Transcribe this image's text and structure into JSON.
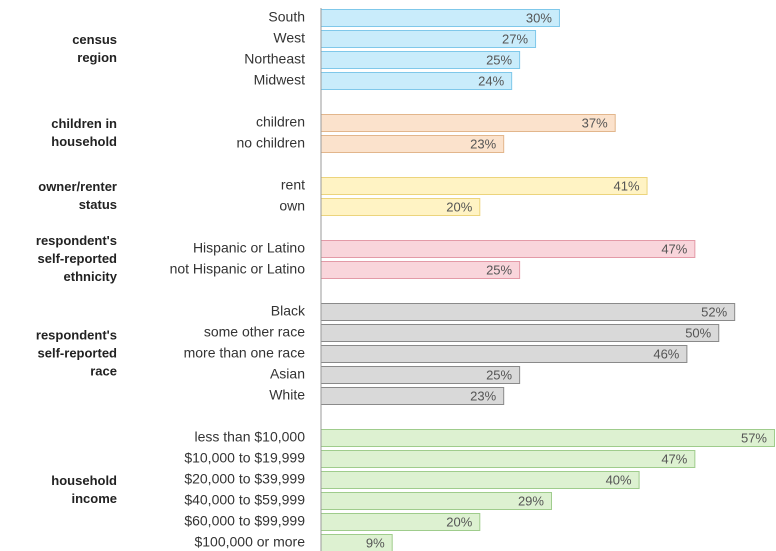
{
  "chart_data": {
    "type": "bar",
    "orientation": "horizontal",
    "groups": [
      {
        "label": [
          "census",
          "region"
        ],
        "color": "#c9ecfb",
        "edge": "#7fc8ea",
        "categories": [
          "South",
          "West",
          "Northeast",
          "Midwest"
        ],
        "values": [
          30,
          27,
          25,
          24
        ],
        "value_labels": [
          "30%",
          "27%",
          "25%",
          "24%"
        ]
      },
      {
        "label": [
          "children in",
          "household"
        ],
        "color": "#fbe2cc",
        "edge": "#e2b68c",
        "categories": [
          "children",
          "no children"
        ],
        "values": [
          37,
          23
        ],
        "value_labels": [
          "37%",
          "23%"
        ]
      },
      {
        "label": [
          "owner/renter",
          "status"
        ],
        "color": "#fff3c4",
        "edge": "#ecd47c",
        "categories": [
          "rent",
          "own"
        ],
        "values": [
          41,
          20
        ],
        "value_labels": [
          "41%",
          "20%"
        ]
      },
      {
        "label": [
          "respondent's",
          "self-reported",
          "ethnicity"
        ],
        "color": "#f9d5db",
        "edge": "#e39aa7",
        "categories": [
          "Hispanic or Latino",
          "not Hispanic or Latino"
        ],
        "values": [
          47,
          25
        ],
        "value_labels": [
          "47%",
          "25%"
        ]
      },
      {
        "label": [
          "respondent's",
          "self-reported",
          "race"
        ],
        "color": "#d9d9d9",
        "edge": "#8a8a8a",
        "categories": [
          "Black",
          "some other race",
          "more than one race",
          "Asian",
          "White"
        ],
        "values": [
          52,
          50,
          46,
          25,
          23
        ],
        "value_labels": [
          "52%",
          "50%",
          "46%",
          "25%",
          "23%"
        ]
      },
      {
        "label": [
          "household",
          "income"
        ],
        "color": "#ddf1d1",
        "edge": "#9fcc8c",
        "categories": [
          "less than $10,000",
          "$10,000 to $19,999",
          "$20,000 to $39,999",
          "$40,000 to $59,999",
          "$60,000 to $99,999",
          "$100,000 or more"
        ],
        "values": [
          57,
          47,
          40,
          29,
          20,
          9
        ],
        "value_labels": [
          "57%",
          "47%",
          "40%",
          "29%",
          "20%",
          "9%"
        ]
      }
    ]
  }
}
